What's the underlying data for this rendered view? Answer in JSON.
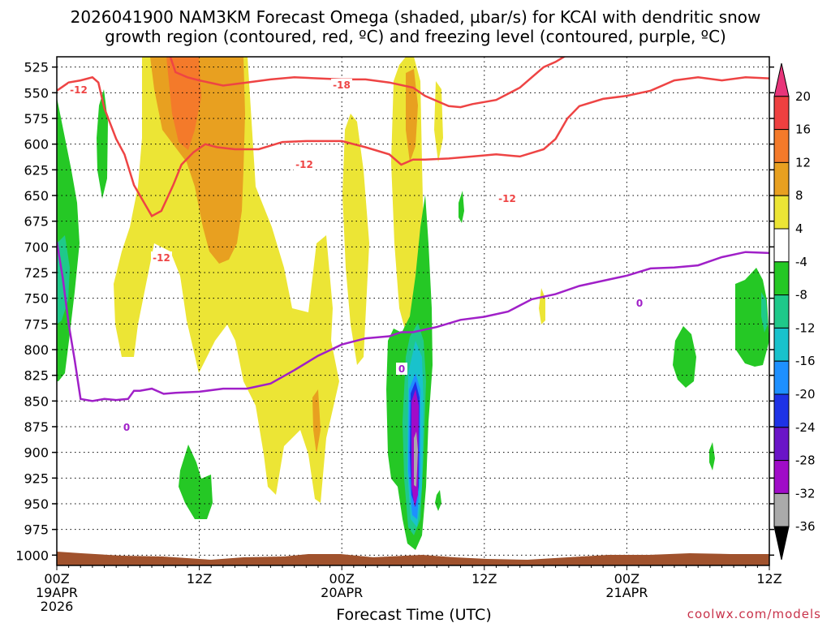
{
  "chart_data": {
    "type": "contour",
    "title_line1": "2026041900 NAM3KM Forecast Omega (shaded, µbar/s) for KCAI with dendritic snow",
    "title_line2": "growth region (contoured, red, ºC) and freezing level (contoured, purple, ºC)",
    "xlabel": "Forecast Time (UTC)",
    "x_range_hours": [
      0,
      60
    ],
    "x_ticks": [
      {
        "hour": 0,
        "label": "00Z",
        "date": "19APR",
        "year": "2026"
      },
      {
        "hour": 12,
        "label": "12Z"
      },
      {
        "hour": 24,
        "label": "00Z",
        "date": "20APR"
      },
      {
        "hour": 36,
        "label": "12Z"
      },
      {
        "hour": 48,
        "label": "00Z",
        "date": "21APR"
      },
      {
        "hour": 60,
        "label": "12Z"
      }
    ],
    "y_range_hpa": [
      515,
      1010
    ],
    "y_ticks": [
      525,
      550,
      575,
      600,
      625,
      650,
      675,
      700,
      725,
      750,
      775,
      800,
      825,
      850,
      875,
      900,
      925,
      950,
      975,
      1000
    ],
    "grid": true,
    "colorbar": {
      "labels": [
        20,
        16,
        12,
        8,
        4,
        -4,
        -8,
        -12,
        -16,
        -20,
        -24,
        -28,
        -32,
        -36
      ],
      "colors": [
        "#e8357a",
        "#ee4040",
        "#f47a2a",
        "#e8a020",
        "#ece535",
        "#ffffff",
        "#25c825",
        "#1fc98a",
        "#19c2cc",
        "#1e90ff",
        "#1e32e6",
        "#6a14c8",
        "#a00cc8",
        "#aaaaaa",
        "#000000"
      ]
    },
    "freezing_level_0C": {
      "label": "0",
      "color": "#a020c8",
      "points": [
        [
          0,
          695
        ],
        [
          0.5,
          730
        ],
        [
          1,
          775
        ],
        [
          1.5,
          810
        ],
        [
          2,
          848
        ],
        [
          3,
          850
        ],
        [
          4,
          848
        ],
        [
          5,
          849
        ],
        [
          6,
          848
        ],
        [
          6.5,
          840
        ],
        [
          7,
          840
        ],
        [
          8,
          838
        ],
        [
          9,
          843
        ],
        [
          10,
          842
        ],
        [
          12,
          841
        ],
        [
          14,
          838
        ],
        [
          16,
          838
        ],
        [
          18,
          833
        ],
        [
          20,
          820
        ],
        [
          22,
          806
        ],
        [
          24,
          795
        ],
        [
          26,
          789
        ],
        [
          28,
          787
        ],
        [
          29,
          783
        ],
        [
          30,
          783
        ],
        [
          32,
          778
        ],
        [
          34,
          771
        ],
        [
          36,
          768
        ],
        [
          38,
          763
        ],
        [
          40,
          751
        ],
        [
          42,
          746
        ],
        [
          44,
          738
        ],
        [
          46,
          733
        ],
        [
          48,
          728
        ],
        [
          50,
          721
        ],
        [
          52,
          720
        ],
        [
          54,
          718
        ],
        [
          56,
          710
        ],
        [
          58,
          705
        ],
        [
          60,
          706
        ]
      ]
    },
    "isotherm_m12C_lower": {
      "label": "-12",
      "color": "#ee4444",
      "points": [
        [
          0,
          548
        ],
        [
          1,
          540
        ],
        [
          2,
          538
        ],
        [
          3,
          535
        ],
        [
          3.5,
          540
        ],
        [
          4,
          565
        ],
        [
          5,
          595
        ],
        [
          5.7,
          610
        ],
        [
          6.5,
          640
        ],
        [
          7.5,
          660
        ],
        [
          8,
          670
        ],
        [
          8.8,
          665
        ],
        [
          9.8,
          640
        ],
        [
          10.5,
          620
        ],
        [
          11.5,
          608
        ],
        [
          12.5,
          600
        ],
        [
          13.5,
          603
        ],
        [
          15,
          605
        ],
        [
          17,
          605
        ],
        [
          19,
          598
        ],
        [
          21,
          597
        ],
        [
          24,
          597
        ],
        [
          26,
          603
        ],
        [
          28,
          610
        ],
        [
          29,
          620
        ],
        [
          30,
          615
        ],
        [
          31,
          615
        ],
        [
          33,
          614
        ],
        [
          35,
          612
        ],
        [
          37,
          610
        ],
        [
          39,
          612
        ],
        [
          41,
          605
        ],
        [
          42,
          595
        ],
        [
          43,
          575
        ],
        [
          44,
          563
        ],
        [
          46,
          556
        ],
        [
          48,
          553
        ],
        [
          50,
          548
        ],
        [
          52,
          538
        ],
        [
          54,
          535
        ],
        [
          56,
          538
        ],
        [
          58,
          535
        ],
        [
          60,
          536
        ]
      ]
    },
    "isotherm_m12C_upper": {
      "label": "-12",
      "color": "#ee4444",
      "points": [
        [
          9.5,
          513
        ],
        [
          10,
          530
        ],
        [
          11,
          535
        ],
        [
          12,
          538
        ],
        [
          14,
          543
        ],
        [
          16,
          540
        ],
        [
          18,
          537
        ],
        [
          20,
          535
        ],
        [
          22,
          536
        ],
        [
          24,
          537
        ],
        [
          26,
          537
        ],
        [
          28,
          540
        ],
        [
          30,
          545
        ],
        [
          31,
          553
        ],
        [
          32,
          558
        ],
        [
          33,
          563
        ],
        [
          34,
          564
        ],
        [
          35,
          561
        ],
        [
          37,
          557
        ],
        [
          39,
          545
        ],
        [
          40,
          535
        ],
        [
          41,
          525
        ],
        [
          42,
          520
        ],
        [
          43,
          513
        ]
      ]
    },
    "isotherm_m18C": {
      "label": "-18",
      "color": "#ee4444"
    },
    "credit": "coolwx.com/models"
  }
}
